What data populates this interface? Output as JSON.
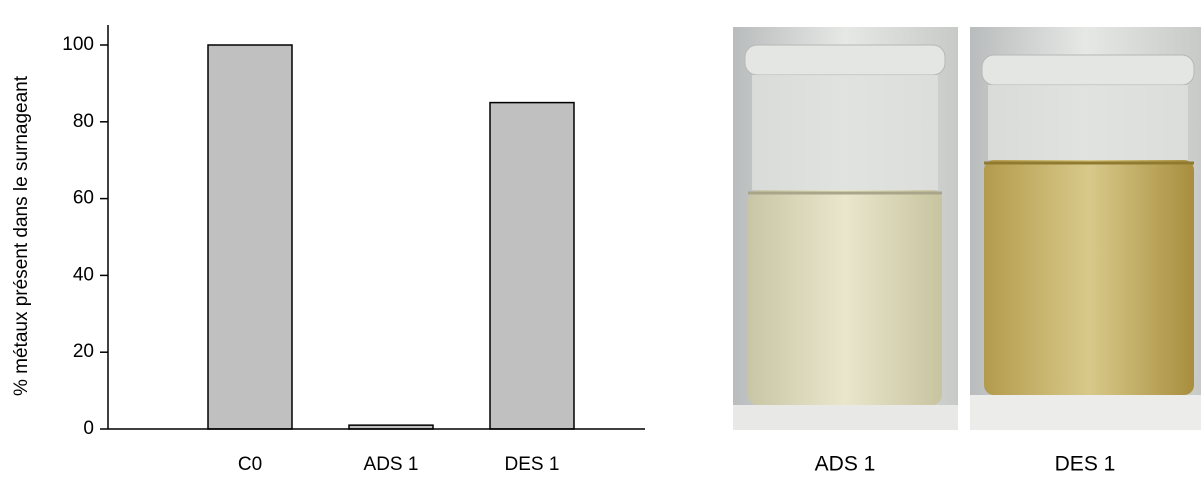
{
  "chart_data": {
    "type": "bar",
    "y_label": "% métaux présent dans le surnageant",
    "categories": [
      "C0",
      "ADS 1",
      "DES 1"
    ],
    "values": [
      100,
      1,
      85
    ],
    "color": "#c0c0c0",
    "ylim": [
      0,
      100
    ],
    "yticks": [
      0,
      20,
      40,
      60,
      80,
      100
    ],
    "grid": false
  },
  "photos": [
    {
      "caption": "ADS 1"
    },
    {
      "caption": "DES 1"
    }
  ]
}
